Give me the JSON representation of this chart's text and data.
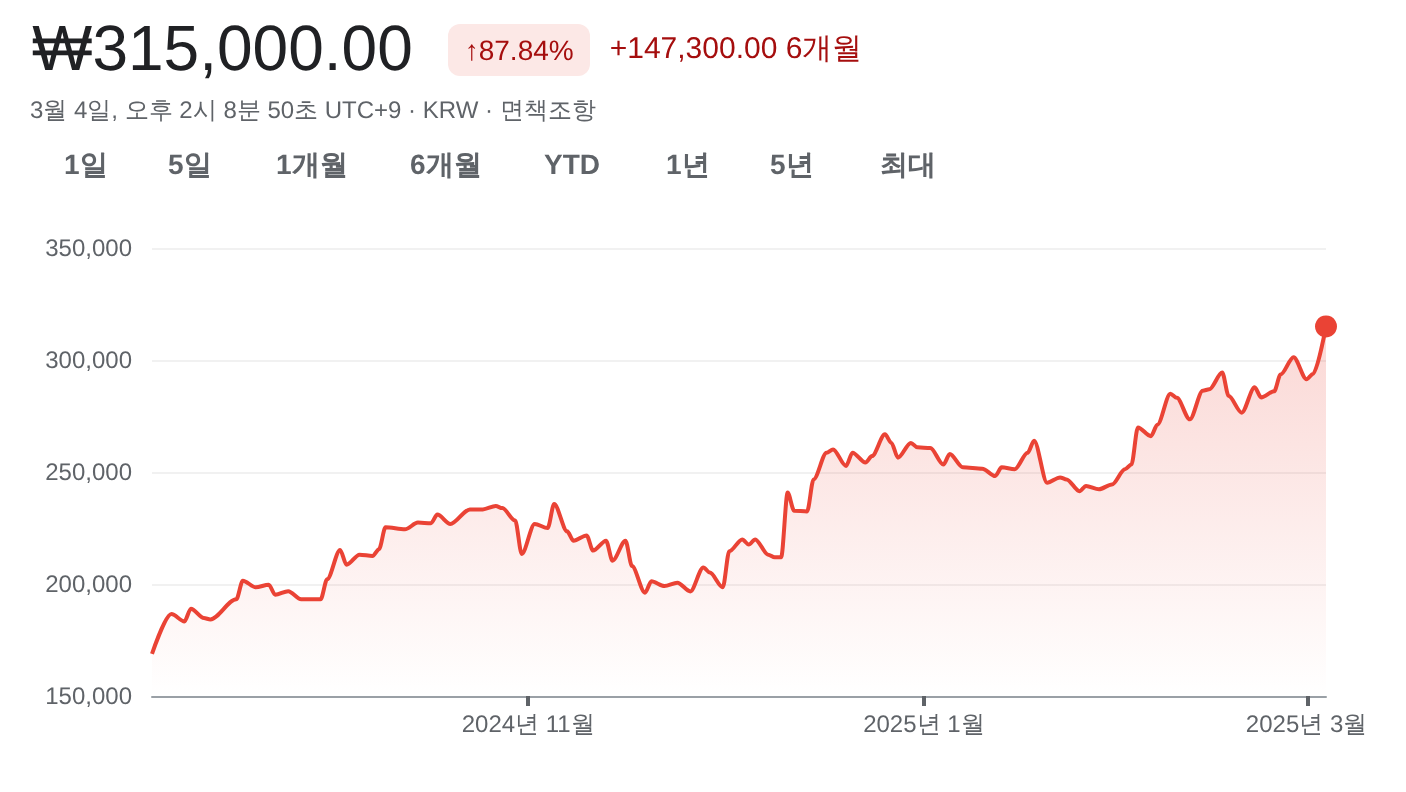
{
  "chart_data": {
    "type": "area",
    "title": "₩315,000.00",
    "subtitle": "3월 4일, 오후 2시 8분 50초 UTC+9 · KRW · 면책조항",
    "annotations": [
      "↑87.84%",
      "+147,300.00 6개월",
      "1일",
      "5일",
      "1개월",
      "6개월",
      "YTD",
      "1년",
      "5년",
      "최대"
    ],
    "x": [
      "2024-09-04",
      "2024-09-07",
      "2024-09-09",
      "2024-09-10",
      "2024-09-12",
      "2024-09-13",
      "2024-09-17",
      "2024-09-18",
      "2024-09-20",
      "2024-09-22",
      "2024-09-23",
      "2024-09-25",
      "2024-09-27",
      "2024-09-30",
      "2024-10-01",
      "2024-10-03",
      "2024-10-04",
      "2024-10-06",
      "2024-10-08",
      "2024-10-09",
      "2024-10-10",
      "2024-10-13",
      "2024-10-15",
      "2024-10-17",
      "2024-10-18",
      "2024-10-20",
      "2024-10-23",
      "2024-10-25",
      "2024-10-27",
      "2024-10-28",
      "2024-10-30",
      "2024-10-31",
      "2024-11-02",
      "2024-11-04",
      "2024-11-05",
      "2024-11-07",
      "2024-11-08",
      "2024-11-10",
      "2024-11-11",
      "2024-11-13",
      "2024-11-14",
      "2024-11-16",
      "2024-11-17",
      "2024-11-19",
      "2024-11-20",
      "2024-11-22",
      "2024-11-24",
      "2024-11-26",
      "2024-11-28",
      "2024-11-29",
      "2024-12-01",
      "2024-12-02",
      "2024-12-04",
      "2024-12-05",
      "2024-12-06",
      "2024-12-08",
      "2024-12-09",
      "2024-12-10",
      "2024-12-11",
      "2024-12-12",
      "2024-12-14",
      "2024-12-15",
      "2024-12-17",
      "2024-12-18",
      "2024-12-20",
      "2024-12-21",
      "2024-12-23",
      "2024-12-24",
      "2024-12-26",
      "2024-12-27",
      "2024-12-28",
      "2024-12-30",
      "2024-12-31",
      "2025-01-02",
      "2025-01-04",
      "2025-01-05",
      "2025-01-07",
      "2025-01-10",
      "2025-01-12",
      "2025-01-13",
      "2025-01-15",
      "2025-01-17",
      "2025-01-18",
      "2025-01-20",
      "2025-01-22",
      "2025-01-23",
      "2025-01-25",
      "2025-01-26",
      "2025-01-28",
      "2025-01-30",
      "2025-02-01",
      "2025-02-02",
      "2025-02-03",
      "2025-02-05",
      "2025-02-06",
      "2025-02-08",
      "2025-02-09",
      "2025-02-11",
      "2025-02-13",
      "2025-02-14",
      "2025-02-16",
      "2025-02-17",
      "2025-02-19",
      "2025-02-21",
      "2025-02-22",
      "2025-02-24",
      "2025-02-25",
      "2025-02-27",
      "2025-03-01",
      "2025-03-02",
      "2025-03-04"
    ],
    "series": [
      {
        "color": "#ea4335",
        "values": [
          168800,
          186600,
          183300,
          189000,
          184800,
          184200,
          193200,
          201500,
          198500,
          199700,
          195200,
          196800,
          193200,
          193200,
          202100,
          215200,
          208600,
          213100,
          212500,
          215500,
          225300,
          224400,
          227400,
          227100,
          231000,
          226800,
          233300,
          233300,
          234800,
          233900,
          228300,
          213400,
          226800,
          225000,
          235700,
          223500,
          219300,
          221700,
          214900,
          219300,
          210400,
          219300,
          208000,
          196100,
          201200,
          199100,
          200600,
          196700,
          207400,
          205100,
          198500,
          214600,
          219900,
          217600,
          219900,
          213100,
          211900,
          211900,
          240800,
          232700,
          232400,
          246700,
          258600,
          260100,
          252700,
          258600,
          254200,
          257100,
          266800,
          263000,
          256400,
          263000,
          261000,
          260700,
          253300,
          258000,
          252100,
          251500,
          248200,
          252100,
          251200,
          258600,
          264000,
          245200,
          247600,
          246700,
          241400,
          243800,
          242300,
          244400,
          251200,
          253300,
          269900,
          266000,
          271100,
          284900,
          283100,
          273500,
          286300,
          286900,
          294400,
          283900,
          276500,
          287800,
          283300,
          286000,
          293500,
          301200,
          291400,
          293800,
          315000
        ]
      }
    ],
    "xlim": [
      "2024-09-04",
      "2025-03-04"
    ],
    "xticks": [
      {
        "value": "2024-11-01",
        "label": "2024년 11월"
      },
      {
        "value": "2025-01-01",
        "label": "2025년 1월"
      },
      {
        "value": "2025-03-01",
        "label": "2025년 3월"
      }
    ],
    "ylim": [
      150000,
      350000
    ],
    "yticks": [
      {
        "value": 150000,
        "label": "150,000"
      },
      {
        "value": 200000,
        "label": "200,000"
      },
      {
        "value": 250000,
        "label": "250,000"
      },
      {
        "value": 300000,
        "label": "300,000"
      },
      {
        "value": 350000,
        "label": "350,000"
      }
    ],
    "grid": "y"
  }
}
